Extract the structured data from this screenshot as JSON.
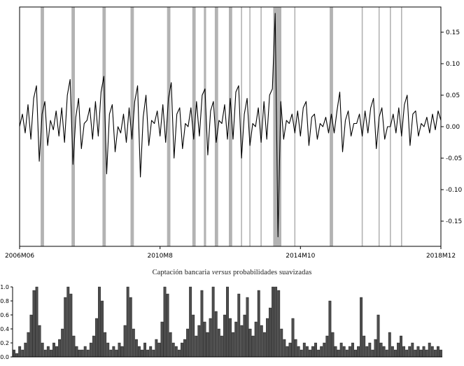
{
  "figure": {
    "caption_pre": "Captación bancaria ",
    "caption_italic": "versus",
    "caption_post": " probabilidades suavizadas"
  },
  "chart_data": [
    {
      "type": "line",
      "title": "",
      "xlabel": "",
      "ylabel": "",
      "line_color": "#000000",
      "band_color": "#b3b3b3",
      "grid": false,
      "ylim": [
        -0.19,
        0.19
      ],
      "x_ticks": [
        {
          "index": 0,
          "label": "2006M06"
        },
        {
          "index": 50,
          "label": "2010M8"
        },
        {
          "index": 100,
          "label": "2014M10"
        },
        {
          "index": 150,
          "label": "2018M12"
        }
      ],
      "y_ticks": [
        {
          "value": 0.15,
          "label": "0.15"
        },
        {
          "value": 0.1,
          "label": "0.10"
        },
        {
          "value": 0.05,
          "label": "0.05"
        },
        {
          "value": 0.0,
          "label": "0.00"
        },
        {
          "value": -0.05,
          "label": "-0.05"
        },
        {
          "value": -0.1,
          "label": "-0.10"
        },
        {
          "value": -0.15,
          "label": "-0.15"
        }
      ],
      "shaded_bands": [
        {
          "start": 7.5,
          "end": 8.7
        },
        {
          "start": 18.5,
          "end": 19.7
        },
        {
          "start": 29.5,
          "end": 30.7
        },
        {
          "start": 39.5,
          "end": 40.7
        },
        {
          "start": 52.5,
          "end": 53.7
        },
        {
          "start": 61.5,
          "end": 62.7
        },
        {
          "start": 65.6,
          "end": 66.4
        },
        {
          "start": 69.5,
          "end": 70.7
        },
        {
          "start": 74.5,
          "end": 75.7
        },
        {
          "start": 78.8,
          "end": 79.2
        },
        {
          "start": 81.8,
          "end": 82.2
        },
        {
          "start": 85.8,
          "end": 86.2
        },
        {
          "start": 90.3,
          "end": 93.2
        },
        {
          "start": 97.8,
          "end": 98.2
        },
        {
          "start": 110.4,
          "end": 111.6
        },
        {
          "start": 121.8,
          "end": 122.2
        },
        {
          "start": 127.8,
          "end": 128.2
        },
        {
          "start": 131.8,
          "end": 132.2
        },
        {
          "start": 135.8,
          "end": 136.2
        }
      ],
      "values": [
        0.0,
        0.02,
        -0.01,
        0.035,
        -0.02,
        0.045,
        0.065,
        -0.055,
        0.02,
        0.04,
        -0.03,
        0.01,
        -0.005,
        0.025,
        -0.015,
        0.03,
        -0.025,
        0.05,
        0.075,
        -0.06,
        0.015,
        0.045,
        -0.035,
        0.005,
        0.01,
        0.03,
        -0.02,
        0.04,
        -0.015,
        0.055,
        0.08,
        -0.075,
        0.02,
        0.035,
        -0.04,
        0.0,
        -0.01,
        0.02,
        -0.025,
        0.03,
        -0.02,
        0.04,
        0.065,
        -0.08,
        0.015,
        0.05,
        -0.03,
        0.01,
        0.005,
        0.025,
        -0.015,
        0.035,
        -0.025,
        0.045,
        0.07,
        -0.05,
        0.02,
        0.03,
        -0.035,
        0.005,
        0.0,
        0.03,
        -0.02,
        0.04,
        -0.015,
        0.05,
        0.06,
        -0.045,
        0.025,
        0.04,
        -0.025,
        0.01,
        0.005,
        0.035,
        -0.02,
        0.045,
        -0.02,
        0.055,
        0.065,
        -0.05,
        0.02,
        0.045,
        -0.03,
        0.005,
        0.0,
        0.03,
        -0.025,
        0.04,
        -0.02,
        0.05,
        0.06,
        0.18,
        -0.175,
        0.04,
        -0.02,
        0.01,
        0.005,
        0.02,
        -0.01,
        0.025,
        -0.015,
        0.03,
        0.04,
        -0.03,
        0.015,
        0.02,
        -0.02,
        0.005,
        0.0,
        0.015,
        -0.01,
        0.02,
        -0.01,
        0.025,
        0.055,
        -0.04,
        0.01,
        0.025,
        -0.015,
        0.005,
        0.005,
        0.02,
        -0.015,
        0.025,
        -0.01,
        0.03,
        0.045,
        -0.035,
        0.015,
        0.03,
        -0.02,
        0.0,
        0.0,
        0.02,
        -0.01,
        0.03,
        -0.015,
        0.035,
        0.05,
        -0.03,
        0.02,
        0.025,
        -0.015,
        0.005,
        0.0,
        0.015,
        -0.01,
        0.02,
        -0.005,
        0.025,
        0.01
      ]
    },
    {
      "type": "bar",
      "title": "Captación bancaria versus probabilidades suavizadas",
      "xlabel": "",
      "ylabel": "",
      "bar_color": "#4d4d4d",
      "bar_edge_color": "#111111",
      "grid": false,
      "ylim": [
        0,
        1
      ],
      "y_ticks": [
        {
          "value": 1.0,
          "label": "1.0"
        },
        {
          "value": 0.8,
          "label": "0.8"
        },
        {
          "value": 0.6,
          "label": "0.6"
        },
        {
          "value": 0.4,
          "label": "0.4"
        },
        {
          "value": 0.2,
          "label": "0.2"
        },
        {
          "value": 0.0,
          "label": "0.0"
        }
      ],
      "values": [
        0.1,
        0.05,
        0.15,
        0.1,
        0.2,
        0.35,
        0.6,
        0.95,
        1.0,
        0.45,
        0.2,
        0.1,
        0.15,
        0.1,
        0.2,
        0.15,
        0.25,
        0.4,
        0.85,
        1.0,
        0.9,
        0.3,
        0.15,
        0.1,
        0.1,
        0.15,
        0.1,
        0.2,
        0.3,
        0.55,
        1.0,
        0.8,
        0.35,
        0.2,
        0.1,
        0.15,
        0.1,
        0.2,
        0.15,
        0.45,
        1.0,
        0.85,
        0.4,
        0.25,
        0.15,
        0.1,
        0.2,
        0.1,
        0.15,
        0.1,
        0.25,
        0.2,
        0.5,
        1.0,
        0.9,
        0.35,
        0.2,
        0.15,
        0.1,
        0.2,
        0.25,
        0.4,
        1.0,
        0.6,
        0.3,
        0.45,
        0.95,
        0.5,
        0.35,
        0.55,
        1.0,
        0.65,
        0.4,
        0.3,
        0.6,
        1.0,
        0.55,
        0.35,
        0.5,
        0.9,
        0.45,
        0.6,
        0.85,
        0.4,
        0.3,
        0.5,
        0.95,
        0.45,
        0.35,
        0.55,
        0.7,
        1.0,
        1.0,
        0.95,
        0.4,
        0.25,
        0.15,
        0.2,
        0.55,
        0.25,
        0.15,
        0.1,
        0.2,
        0.15,
        0.1,
        0.15,
        0.2,
        0.1,
        0.15,
        0.2,
        0.3,
        0.8,
        0.35,
        0.15,
        0.1,
        0.2,
        0.15,
        0.1,
        0.15,
        0.2,
        0.1,
        0.15,
        0.85,
        0.3,
        0.15,
        0.2,
        0.1,
        0.25,
        0.6,
        0.2,
        0.15,
        0.1,
        0.35,
        0.15,
        0.1,
        0.2,
        0.3,
        0.15,
        0.1,
        0.15,
        0.2,
        0.1,
        0.15,
        0.1,
        0.15,
        0.1,
        0.2,
        0.15,
        0.1,
        0.15,
        0.1
      ]
    }
  ]
}
